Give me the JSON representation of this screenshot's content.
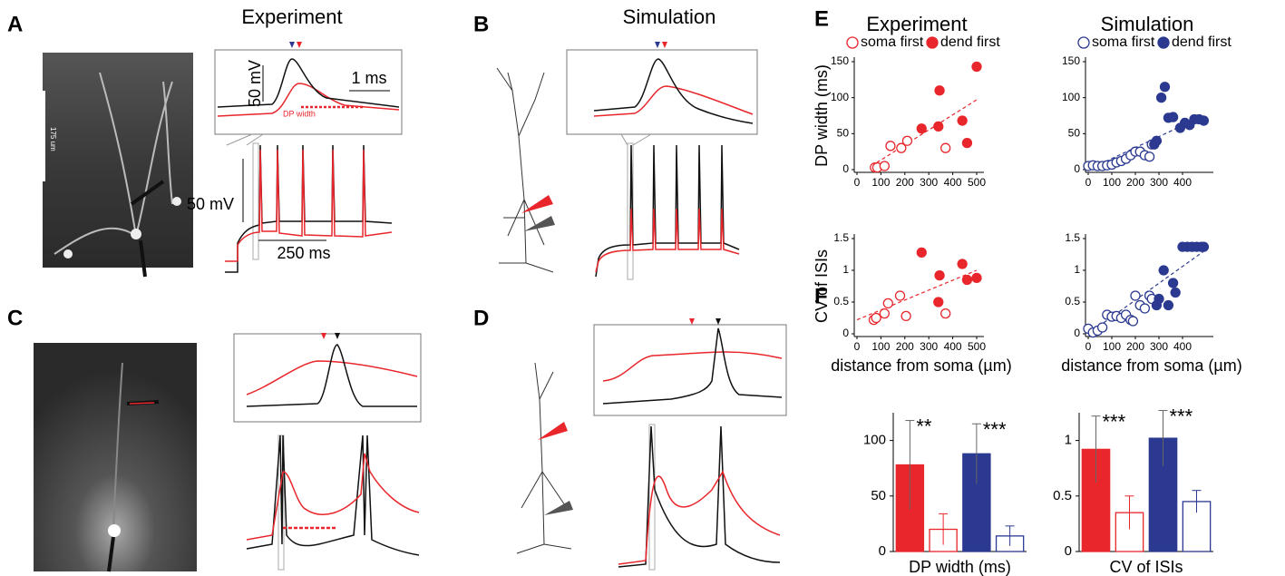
{
  "panels": {
    "A": {
      "letter": "A",
      "title": "Experiment",
      "inset_scale_v": "50 mV",
      "inset_scale_h": "1 ms",
      "inset_label": "DP width",
      "trace_scale_v": "50 mV",
      "trace_scale_h": "250 ms",
      "image_scale": "175 um"
    },
    "B": {
      "letter": "B",
      "title": "Simulation"
    },
    "C": {
      "letter": "C"
    },
    "D": {
      "letter": "D"
    },
    "E": {
      "letter": "E"
    },
    "F": {
      "letter": "F"
    }
  },
  "chart_data": [
    {
      "type": "scatter",
      "title": "Experiment",
      "y_label": "DP width (ms)",
      "legend": "top-left",
      "xlim": [
        0,
        500
      ],
      "xticks": [
        0,
        100,
        200,
        300,
        400,
        500
      ],
      "ylim": [
        0,
        150
      ],
      "yticks": [
        0,
        50,
        100,
        150
      ],
      "series": [
        {
          "name": "soma first",
          "color": "#e8262b",
          "filled": false,
          "x": [
            75,
            85,
            115,
            140,
            185,
            210,
            370
          ],
          "values": [
            3,
            3,
            5,
            33,
            30,
            40,
            30
          ]
        },
        {
          "name": "dend first",
          "color": "#e8262b",
          "filled": true,
          "x": [
            270,
            340,
            345,
            440,
            460,
            500
          ],
          "values": [
            57,
            60,
            110,
            68,
            37,
            143
          ]
        }
      ],
      "trendline": {
        "x": [
          60,
          500
        ],
        "values": [
          5,
          97
        ]
      }
    },
    {
      "type": "scatter",
      "title": "Simulation",
      "legend": "top-left",
      "xlim": [
        0,
        500
      ],
      "xticks": [
        0,
        100,
        200,
        300,
        400
      ],
      "ylim": [
        0,
        150
      ],
      "yticks": [
        0,
        50,
        100,
        150
      ],
      "series": [
        {
          "name": "soma first",
          "color": "#2b3990",
          "filled": false,
          "x": [
            0,
            20,
            40,
            60,
            80,
            100,
            120,
            140,
            160,
            180,
            200,
            220,
            240,
            260,
            270
          ],
          "values": [
            5,
            6,
            5,
            5,
            6,
            7,
            10,
            12,
            15,
            20,
            25,
            25,
            20,
            18,
            35
          ]
        },
        {
          "name": "dend first",
          "color": "#2b3990",
          "filled": true,
          "x": [
            280,
            290,
            310,
            325,
            340,
            360,
            390,
            410,
            430,
            450,
            470,
            490
          ],
          "values": [
            35,
            40,
            100,
            115,
            72,
            73,
            58,
            65,
            62,
            70,
            70,
            68
          ]
        }
      ],
      "trendline": {
        "x": [
          0,
          490
        ],
        "values": [
          0,
          75
        ]
      }
    },
    {
      "type": "scatter",
      "y_label": "CV of ISIs",
      "x_label": "distance from soma (µm)",
      "xlim": [
        0,
        500
      ],
      "xticks": [
        0,
        100,
        200,
        300,
        400,
        500
      ],
      "ylim": [
        0,
        1.5
      ],
      "yticks": [
        0,
        0.5,
        1,
        1.5
      ],
      "series": [
        {
          "color": "#e8262b",
          "filled": false,
          "x": [
            70,
            80,
            115,
            130,
            180,
            205,
            370
          ],
          "values": [
            0.22,
            0.25,
            0.32,
            0.48,
            0.6,
            0.28,
            0.32
          ]
        },
        {
          "color": "#e8262b",
          "filled": true,
          "x": [
            270,
            340,
            345,
            440,
            460,
            500
          ],
          "values": [
            1.28,
            0.5,
            0.92,
            1.1,
            0.85,
            0.88
          ]
        }
      ],
      "trendline": {
        "x": [
          0,
          500
        ],
        "values": [
          0.22,
          1.0
        ]
      }
    },
    {
      "type": "scatter",
      "x_label": "distance from soma (µm)",
      "xlim": [
        0,
        500
      ],
      "xticks": [
        0,
        100,
        200,
        300,
        400
      ],
      "ylim": [
        0,
        1.5
      ],
      "yticks": [
        0,
        0.5,
        1,
        1.5
      ],
      "series": [
        {
          "color": "#2b3990",
          "filled": false,
          "x": [
            0,
            20,
            40,
            60,
            80,
            100,
            120,
            140,
            160,
            180,
            190,
            200,
            220,
            240,
            260,
            270
          ],
          "values": [
            0.08,
            0.02,
            0.05,
            0.1,
            0.3,
            0.27,
            0.28,
            0.25,
            0.3,
            0.22,
            0.2,
            0.6,
            0.45,
            0.4,
            0.6,
            0.55
          ]
        },
        {
          "color": "#2b3990",
          "filled": true,
          "x": [
            290,
            300,
            320,
            340,
            360,
            370,
            400,
            420,
            440,
            460,
            480,
            490
          ],
          "values": [
            0.45,
            0.55,
            1.0,
            0.45,
            0.8,
            0.65,
            1.37,
            1.37,
            1.37,
            1.37,
            1.37,
            1.37
          ]
        }
      ],
      "trendline": {
        "x": [
          0,
          490
        ],
        "values": [
          0,
          1.3
        ]
      }
    },
    {
      "type": "bar",
      "x_label": "DP width (ms)",
      "ylim": [
        0,
        125
      ],
      "yticks": [
        0,
        50,
        100
      ],
      "categories": [
        null,
        null,
        null,
        null
      ],
      "values": [
        78,
        20,
        88,
        14
      ],
      "errors": [
        40,
        14,
        27,
        9
      ],
      "colors": [
        "#e8262b",
        "#e8262b",
        "#2b3990",
        "#2b3990"
      ],
      "filled": [
        true,
        false,
        true,
        false
      ],
      "significance": [
        "**",
        null,
        "***",
        null
      ]
    },
    {
      "type": "bar",
      "x_label": "CV of ISIs",
      "ylim": [
        0,
        1.25
      ],
      "yticks": [
        0,
        0.5,
        1
      ],
      "categories": [
        null,
        null,
        null,
        null
      ],
      "values": [
        0.92,
        0.35,
        1.02,
        0.45
      ],
      "errors": [
        0.3,
        0.15,
        0.25,
        0.1
      ],
      "colors": [
        "#e8262b",
        "#e8262b",
        "#2b3990",
        "#2b3990"
      ],
      "filled": [
        true,
        false,
        true,
        false
      ],
      "significance": [
        "***",
        null,
        "***",
        null
      ]
    }
  ]
}
